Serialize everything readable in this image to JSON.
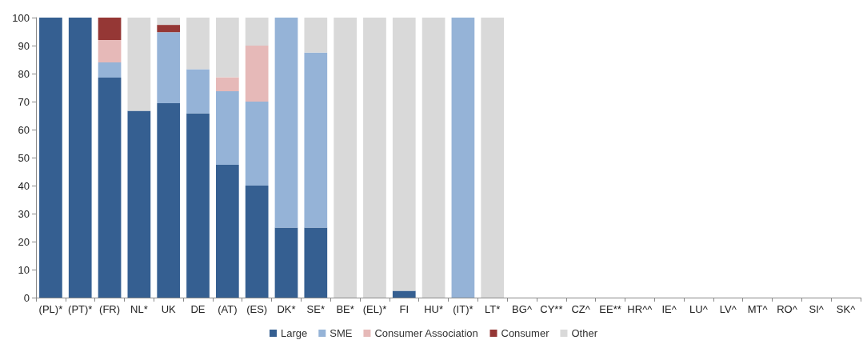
{
  "chart_data": {
    "type": "bar",
    "stacked": true,
    "categories": [
      "(PL)*",
      "(PT)*",
      "(FR)",
      "NL*",
      "UK",
      "DE",
      "(AT)",
      "(ES)",
      "DK*",
      "SE*",
      "BE*",
      "(EL)*",
      "FI",
      "HU*",
      "(IT)*",
      "LT*",
      "BG^",
      "CY**",
      "CZ^",
      "EE**",
      "HR^^",
      "IE^",
      "LU^",
      "LV^",
      "MT^",
      "RO^",
      "SI^",
      "SK^"
    ],
    "series": [
      {
        "name": "Large",
        "color": "#355f91",
        "values": [
          100,
          100,
          78.6,
          66.7,
          69.4,
          65.8,
          47.4,
          40,
          25,
          25,
          0,
          0,
          2.4,
          0,
          0,
          0,
          null,
          null,
          null,
          null,
          null,
          null,
          null,
          null,
          null,
          null,
          null,
          null
        ]
      },
      {
        "name": "SME",
        "color": "#95b3d7",
        "values": [
          0,
          0,
          5.4,
          0,
          25.4,
          15.8,
          26.3,
          30,
          75,
          62.5,
          0,
          0,
          0,
          0,
          100,
          0,
          null,
          null,
          null,
          null,
          null,
          null,
          null,
          null,
          null,
          null,
          null,
          null
        ]
      },
      {
        "name": "Consumer Association",
        "color": "#e6b9b8",
        "values": [
          0,
          0,
          8,
          0,
          0,
          0,
          5,
          20,
          0,
          0,
          0,
          0,
          0,
          0,
          0,
          0,
          null,
          null,
          null,
          null,
          null,
          null,
          null,
          null,
          null,
          null,
          null,
          null
        ]
      },
      {
        "name": "Consumer",
        "color": "#953735",
        "values": [
          0,
          0,
          8,
          0,
          2.6,
          0,
          0,
          0,
          0,
          0,
          0,
          0,
          0,
          0,
          0,
          0,
          null,
          null,
          null,
          null,
          null,
          null,
          null,
          null,
          null,
          null,
          null,
          null
        ]
      },
      {
        "name": "Other",
        "color": "#d9d9d9",
        "values": [
          0,
          0,
          0,
          33.3,
          2.6,
          18.4,
          21.3,
          10,
          0,
          12.5,
          100,
          100,
          97.6,
          100,
          0,
          100,
          null,
          null,
          null,
          null,
          null,
          null,
          null,
          null,
          null,
          null,
          null,
          null
        ]
      }
    ],
    "ylim": [
      0,
      100
    ],
    "yticks": [
      0,
      10,
      20,
      30,
      40,
      50,
      60,
      70,
      80,
      90,
      100
    ],
    "grid": false,
    "legend": "bottom"
  }
}
